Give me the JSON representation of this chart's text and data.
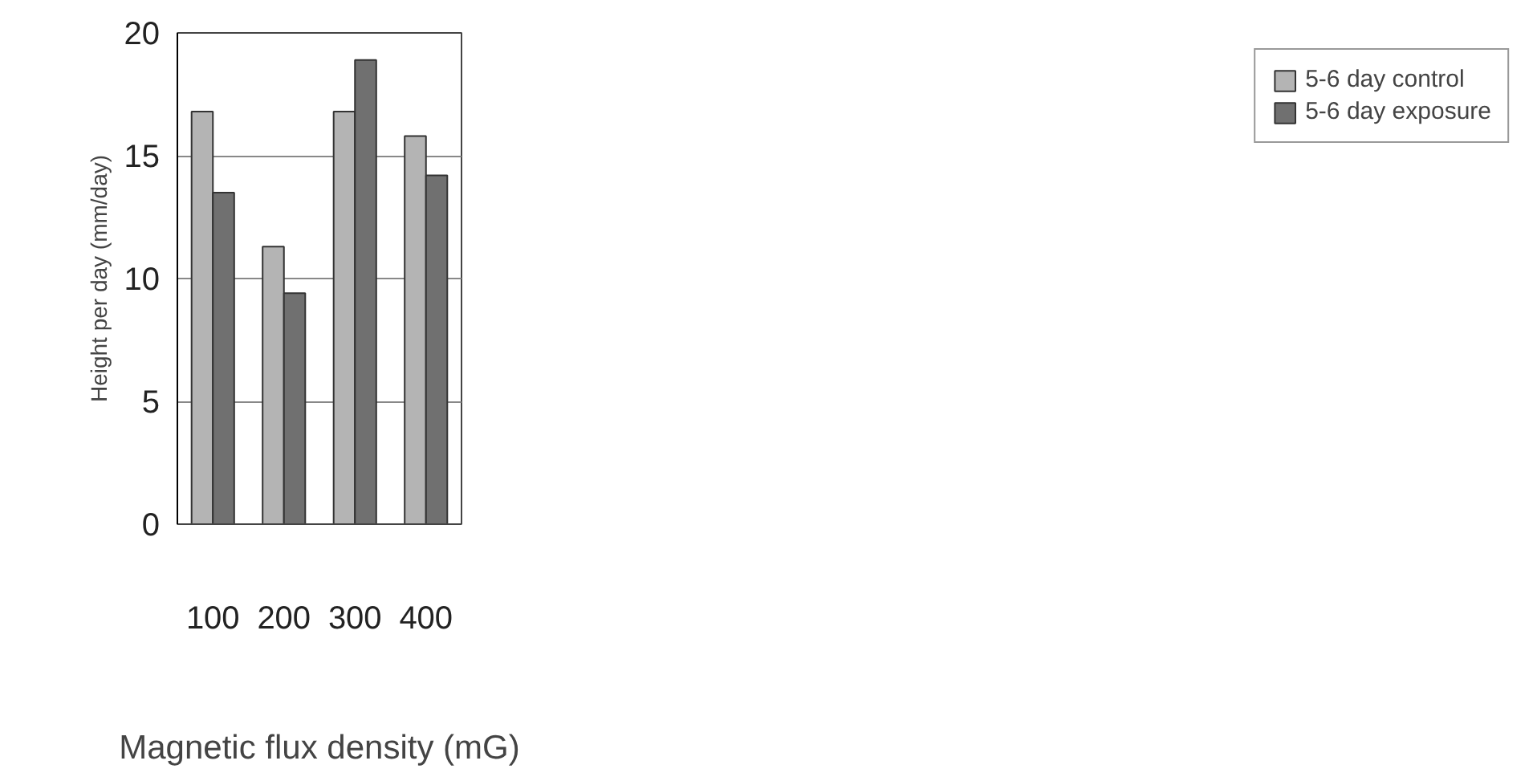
{
  "chart_data": {
    "type": "bar",
    "xlabel": "Magnetic flux density (mG)",
    "ylabel": "Height per day (mm/day)",
    "categories": [
      "100",
      "200",
      "300",
      "400"
    ],
    "series": [
      {
        "name": "5-6 day control",
        "color": "#b4b4b4",
        "values": [
          16.8,
          11.3,
          16.8,
          15.8
        ]
      },
      {
        "name": "5-6 day exposure",
        "color": "#707070",
        "values": [
          13.5,
          9.4,
          18.9,
          14.2
        ]
      }
    ],
    "ylim": [
      0,
      20
    ],
    "yticks": [
      0,
      5,
      10,
      15,
      20
    ],
    "grid": "y",
    "legend": "right"
  }
}
